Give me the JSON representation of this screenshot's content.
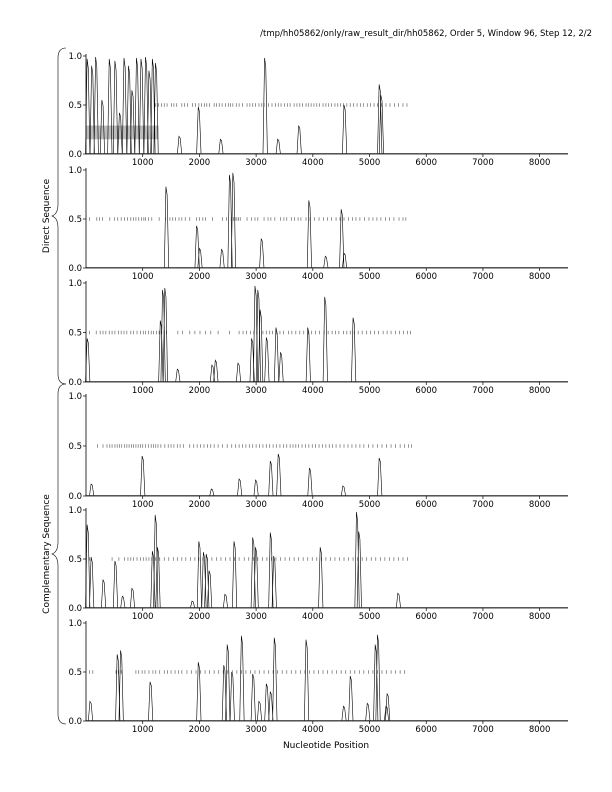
{
  "header": {
    "title": "/tmp/hh05862/only/raw_result_dir/hh05862, Order 5, Window 96, Step 12, 2/2"
  },
  "labels": {
    "xlabel": "Nucleotide Position",
    "direct_group": "Direct Sequence",
    "complementary_group": "Complementary Sequence"
  },
  "chart_data": [
    {
      "type": "line",
      "group": "Direct Sequence",
      "panel": 1,
      "xlim": [
        0,
        8500
      ],
      "ylim": [
        0,
        1
      ],
      "xticks": [
        1000,
        2000,
        3000,
        4000,
        5000,
        6000,
        7000,
        8000
      ],
      "yticks": [
        0.0,
        0.5,
        1.0
      ],
      "highlight_region": {
        "x": [
          0,
          1280
        ],
        "y": [
          0.15,
          0.29
        ],
        "color": "#bdbdbd"
      },
      "tick_row": {
        "y": 0.5,
        "x": [
          1230,
          1280,
          1330,
          1380,
          1430,
          1510,
          1550,
          1600,
          1690,
          1740,
          1790,
          1880,
          1930,
          1990,
          2040,
          2090,
          2130,
          2180,
          2260,
          2300,
          2350,
          2400,
          2460,
          2510,
          2550,
          2590,
          2650,
          2700,
          2760,
          2840,
          2890,
          2940,
          2990,
          3050,
          3100,
          3140,
          3220,
          3280,
          3340,
          3390,
          3440,
          3500,
          3550,
          3600,
          3670,
          3720,
          3770,
          3820,
          3880,
          3920,
          3970,
          4020,
          4070,
          4120,
          4180,
          4230,
          4280,
          4330,
          4390,
          4440,
          4490,
          4540,
          4600,
          4660,
          4720,
          4780,
          4840,
          4890,
          4960,
          5020,
          5080,
          5140,
          5210,
          5290,
          5360,
          5440,
          5510,
          5590,
          5660
        ]
      },
      "peaks": [
        {
          "x": 30,
          "y": 0.97
        },
        {
          "x": 110,
          "y": 0.9
        },
        {
          "x": 180,
          "y": 0.99
        },
        {
          "x": 290,
          "y": 0.55
        },
        {
          "x": 420,
          "y": 0.97
        },
        {
          "x": 520,
          "y": 0.95
        },
        {
          "x": 600,
          "y": 0.42
        },
        {
          "x": 680,
          "y": 0.98
        },
        {
          "x": 760,
          "y": 0.9
        },
        {
          "x": 820,
          "y": 0.65
        },
        {
          "x": 900,
          "y": 0.98
        },
        {
          "x": 980,
          "y": 0.97
        },
        {
          "x": 1060,
          "y": 0.99
        },
        {
          "x": 1120,
          "y": 0.85
        },
        {
          "x": 1180,
          "y": 0.97
        },
        {
          "x": 1235,
          "y": 0.93
        },
        {
          "x": 1650,
          "y": 0.18
        },
        {
          "x": 1990,
          "y": 0.48
        },
        {
          "x": 2380,
          "y": 0.15
        },
        {
          "x": 3160,
          "y": 0.98
        },
        {
          "x": 3390,
          "y": 0.15
        },
        {
          "x": 3760,
          "y": 0.29
        },
        {
          "x": 4560,
          "y": 0.5
        },
        {
          "x": 5180,
          "y": 0.71
        },
        {
          "x": 5210,
          "y": 0.6
        }
      ]
    },
    {
      "type": "line",
      "group": "Direct Sequence",
      "panel": 2,
      "xlim": [
        0,
        8500
      ],
      "ylim": [
        0,
        1
      ],
      "xticks": [
        1000,
        2000,
        3000,
        4000,
        5000,
        6000,
        7000,
        8000
      ],
      "yticks": [
        0.0,
        0.5,
        1.0
      ],
      "tick_row": {
        "y": 0.5,
        "x": [
          60,
          190,
          240,
          290,
          420,
          500,
          560,
          620,
          680,
          730,
          790,
          840,
          880,
          930,
          980,
          1020,
          1050,
          1100,
          1160,
          1290,
          1400,
          1480,
          1530,
          1580,
          1640,
          1690,
          1750,
          1830,
          1950,
          2000,
          2060,
          2110,
          2230,
          2410,
          2480,
          2560,
          2600,
          2630,
          2660,
          2690,
          2720,
          2840,
          2920,
          2980,
          3030,
          3140,
          3210,
          3260,
          3330,
          3430,
          3490,
          3540,
          3620,
          3680,
          3740,
          3790,
          3880,
          3950,
          4030,
          4110,
          4190,
          4260,
          4330,
          4410,
          4480,
          4550,
          4630,
          4700,
          4760,
          4830,
          4910,
          4990,
          5060,
          5130,
          5200,
          5280,
          5350,
          5430,
          5520,
          5590,
          5640
        ]
      },
      "peaks": [
        {
          "x": 1420,
          "y": 0.83
        },
        {
          "x": 1960,
          "y": 0.43
        },
        {
          "x": 2010,
          "y": 0.2
        },
        {
          "x": 2400,
          "y": 0.19
        },
        {
          "x": 2540,
          "y": 0.95
        },
        {
          "x": 2600,
          "y": 0.97
        },
        {
          "x": 3100,
          "y": 0.3
        },
        {
          "x": 3940,
          "y": 0.69
        },
        {
          "x": 4230,
          "y": 0.12
        },
        {
          "x": 4510,
          "y": 0.6
        },
        {
          "x": 4560,
          "y": 0.15
        }
      ]
    },
    {
      "type": "line",
      "group": "Direct Sequence",
      "panel": 3,
      "xlim": [
        0,
        8500
      ],
      "ylim": [
        0,
        1
      ],
      "xticks": [
        1000,
        2000,
        3000,
        4000,
        5000,
        6000,
        7000,
        8000
      ],
      "yticks": [
        0.0,
        0.5,
        1.0
      ],
      "tick_row": {
        "y": 0.5,
        "x": [
          60,
          180,
          250,
          300,
          350,
          410,
          460,
          510,
          570,
          620,
          670,
          720,
          790,
          840,
          900,
          960,
          1010,
          1050,
          1100,
          1150,
          1190,
          1240,
          1290,
          1330,
          1380,
          1420,
          1620,
          1700,
          1830,
          1920,
          2010,
          2110,
          2200,
          2330,
          2530,
          2700,
          2770,
          2830,
          2900,
          2960,
          3010,
          3060,
          3120,
          3180,
          3240,
          3290,
          3360,
          3420,
          3480,
          3570,
          3630,
          3700,
          3770,
          3840,
          3920,
          3980,
          4050,
          4120,
          4200,
          4270,
          4340,
          4400,
          4460,
          4540,
          4600,
          4660,
          4730,
          4800,
          4870,
          4950,
          5020,
          5090,
          5160,
          5240,
          5310,
          5380,
          5460,
          5530,
          5600,
          5670,
          5720
        ]
      },
      "peaks": [
        {
          "x": 30,
          "y": 0.44
        },
        {
          "x": 1320,
          "y": 0.62
        },
        {
          "x": 1360,
          "y": 0.93
        },
        {
          "x": 1400,
          "y": 0.95
        },
        {
          "x": 1620,
          "y": 0.13
        },
        {
          "x": 2230,
          "y": 0.17
        },
        {
          "x": 2290,
          "y": 0.22
        },
        {
          "x": 2690,
          "y": 0.19
        },
        {
          "x": 2930,
          "y": 0.44
        },
        {
          "x": 2990,
          "y": 0.97
        },
        {
          "x": 3040,
          "y": 0.93
        },
        {
          "x": 3080,
          "y": 0.73
        },
        {
          "x": 3190,
          "y": 0.45
        },
        {
          "x": 3360,
          "y": 0.55
        },
        {
          "x": 3440,
          "y": 0.3
        },
        {
          "x": 3920,
          "y": 0.55
        },
        {
          "x": 4220,
          "y": 0.86
        },
        {
          "x": 4720,
          "y": 0.65
        }
      ]
    },
    {
      "type": "line",
      "group": "Complementary Sequence",
      "panel": 1,
      "xlim": [
        0,
        8500
      ],
      "ylim": [
        0,
        1
      ],
      "xticks": [
        1000,
        2000,
        3000,
        4000,
        5000,
        6000,
        7000,
        8000
      ],
      "yticks": [
        0.0,
        0.5,
        1.0
      ],
      "tick_row": {
        "y": 0.5,
        "x": [
          200,
          300,
          370,
          420,
          460,
          510,
          550,
          590,
          630,
          680,
          720,
          760,
          800,
          840,
          880,
          920,
          960,
          1000,
          1050,
          1100,
          1150,
          1190,
          1230,
          1270,
          1320,
          1390,
          1450,
          1500,
          1550,
          1610,
          1660,
          1720,
          1830,
          1900,
          1960,
          2020,
          2080,
          2140,
          2200,
          2260,
          2330,
          2410,
          2490,
          2570,
          2640,
          2700,
          2760,
          2820,
          2880,
          2940,
          3000,
          3060,
          3120,
          3180,
          3240,
          3300,
          3360,
          3420,
          3480,
          3540,
          3600,
          3650,
          3700,
          3750,
          3810,
          3870,
          3930,
          3990,
          4050,
          4110,
          4170,
          4230,
          4290,
          4350,
          4410,
          4480,
          4550,
          4620,
          4690,
          4760,
          4830,
          4900,
          4980,
          5060,
          5140,
          5220,
          5300,
          5380,
          5460,
          5540,
          5620,
          5690,
          5740
        ]
      },
      "peaks": [
        {
          "x": 100,
          "y": 0.12
        },
        {
          "x": 1000,
          "y": 0.4
        },
        {
          "x": 2220,
          "y": 0.07
        },
        {
          "x": 2710,
          "y": 0.17
        },
        {
          "x": 3000,
          "y": 0.16
        },
        {
          "x": 3260,
          "y": 0.35
        },
        {
          "x": 3400,
          "y": 0.42
        },
        {
          "x": 3950,
          "y": 0.28
        },
        {
          "x": 4540,
          "y": 0.1
        },
        {
          "x": 5180,
          "y": 0.38
        }
      ]
    },
    {
      "type": "line",
      "group": "Complementary Sequence",
      "panel": 2,
      "xlim": [
        0,
        8500
      ],
      "ylim": [
        0,
        1
      ],
      "xticks": [
        1000,
        2000,
        3000,
        4000,
        5000,
        6000,
        7000,
        8000
      ],
      "yticks": [
        0.0,
        0.5,
        1.0
      ],
      "tick_row": {
        "y": 0.5,
        "x": [
          60,
          460,
          580,
          680,
          740,
          790,
          840,
          900,
          960,
          1010,
          1060,
          1110,
          1160,
          1230,
          1300,
          1380,
          1460,
          1540,
          1610,
          1690,
          1760,
          1840,
          1920,
          1990,
          2060,
          2140,
          2220,
          2300,
          2380,
          2460,
          2540,
          2620,
          2700,
          2790,
          2870,
          2950,
          3030,
          3110,
          3190,
          3270,
          3350,
          3430,
          3510,
          3590,
          3670,
          3750,
          3830,
          3910,
          3990,
          4070,
          4150,
          4230,
          4310,
          4390,
          4470,
          4550,
          4630,
          4710,
          4790,
          4870,
          4950,
          5030,
          5110,
          5190,
          5270,
          5350,
          5430,
          5510,
          5590,
          5670
        ]
      },
      "peaks": [
        {
          "x": 30,
          "y": 0.85
        },
        {
          "x": 100,
          "y": 0.52
        },
        {
          "x": 310,
          "y": 0.29
        },
        {
          "x": 520,
          "y": 0.48
        },
        {
          "x": 650,
          "y": 0.12
        },
        {
          "x": 820,
          "y": 0.2
        },
        {
          "x": 1180,
          "y": 0.58
        },
        {
          "x": 1230,
          "y": 0.95
        },
        {
          "x": 1270,
          "y": 0.62
        },
        {
          "x": 1880,
          "y": 0.07
        },
        {
          "x": 2000,
          "y": 0.68
        },
        {
          "x": 2080,
          "y": 0.57
        },
        {
          "x": 2130,
          "y": 0.55
        },
        {
          "x": 2180,
          "y": 0.38
        },
        {
          "x": 2460,
          "y": 0.14
        },
        {
          "x": 2620,
          "y": 0.68
        },
        {
          "x": 2950,
          "y": 0.72
        },
        {
          "x": 3000,
          "y": 0.62
        },
        {
          "x": 3260,
          "y": 0.77
        },
        {
          "x": 3320,
          "y": 0.53
        },
        {
          "x": 4140,
          "y": 0.62
        },
        {
          "x": 4780,
          "y": 0.98
        },
        {
          "x": 4820,
          "y": 0.78
        },
        {
          "x": 5510,
          "y": 0.15
        }
      ]
    },
    {
      "type": "line",
      "group": "Complementary Sequence",
      "panel": 3,
      "xlim": [
        0,
        8500
      ],
      "ylim": [
        0,
        1
      ],
      "xticks": [
        1000,
        2000,
        3000,
        4000,
        5000,
        6000,
        7000,
        8000
      ],
      "yticks": [
        0.0,
        0.5,
        1.0
      ],
      "tick_row": {
        "y": 0.5,
        "x": [
          60,
          120,
          530,
          570,
          620,
          880,
          930,
          990,
          1040,
          1110,
          1180,
          1230,
          1300,
          1380,
          1440,
          1500,
          1570,
          1630,
          1690,
          1780,
          1860,
          1940,
          2020,
          2100,
          2180,
          2260,
          2340,
          2420,
          2500,
          2580,
          2660,
          2740,
          2820,
          2900,
          2980,
          3060,
          3140,
          3220,
          3300,
          3380,
          3460,
          3540,
          3620,
          3700,
          3780,
          3860,
          3940,
          4020,
          4100,
          4180,
          4260,
          4340,
          4420,
          4500,
          4580,
          4660,
          4740,
          4820,
          4900,
          4980,
          5060,
          5140,
          5220,
          5300,
          5380,
          5460,
          5540,
          5620
        ]
      },
      "peaks": [
        {
          "x": 80,
          "y": 0.2
        },
        {
          "x": 560,
          "y": 0.68
        },
        {
          "x": 620,
          "y": 0.72
        },
        {
          "x": 1140,
          "y": 0.4
        },
        {
          "x": 1990,
          "y": 0.6
        },
        {
          "x": 2440,
          "y": 0.57
        },
        {
          "x": 2500,
          "y": 0.78
        },
        {
          "x": 2580,
          "y": 0.5
        },
        {
          "x": 2750,
          "y": 0.87
        },
        {
          "x": 2950,
          "y": 0.48
        },
        {
          "x": 3060,
          "y": 0.2
        },
        {
          "x": 3190,
          "y": 0.38
        },
        {
          "x": 3260,
          "y": 0.3
        },
        {
          "x": 3330,
          "y": 0.85
        },
        {
          "x": 3890,
          "y": 0.83
        },
        {
          "x": 4550,
          "y": 0.15
        },
        {
          "x": 4670,
          "y": 0.46
        },
        {
          "x": 4970,
          "y": 0.18
        },
        {
          "x": 5110,
          "y": 0.78
        },
        {
          "x": 5150,
          "y": 0.88
        },
        {
          "x": 5300,
          "y": 0.15
        },
        {
          "x": 5320,
          "y": 0.28
        }
      ]
    }
  ]
}
